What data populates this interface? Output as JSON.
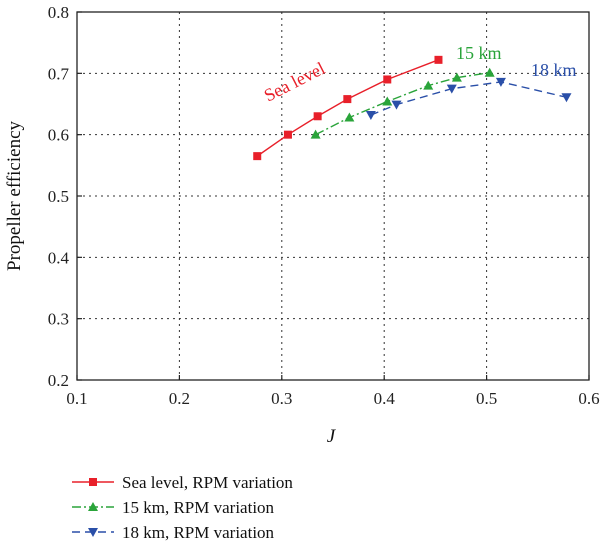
{
  "chart_data": {
    "type": "line",
    "xlabel": "J",
    "ylabel": "Propeller efficiency",
    "xlim": [
      0.1,
      0.6
    ],
    "ylim": [
      0.2,
      0.8
    ],
    "xticks": [
      0.1,
      0.2,
      0.3,
      0.4,
      0.5,
      0.6
    ],
    "yticks": [
      0.2,
      0.3,
      0.4,
      0.5,
      0.6,
      0.7,
      0.8
    ],
    "xtick_labels": [
      "0.1",
      "0.2",
      "0.3",
      "0.4",
      "0.5",
      "0.6"
    ],
    "ytick_labels": [
      "0.2",
      "0.3",
      "0.4",
      "0.5",
      "0.6",
      "0.7",
      "0.8"
    ],
    "grid": true,
    "legend_position": "below plot",
    "series": [
      {
        "name": "Sea level, RPM variation",
        "annotation": "Sea level",
        "color": "#e8202a",
        "marker": "square",
        "line_style": "solid",
        "x": [
          0.276,
          0.306,
          0.335,
          0.364,
          0.403,
          0.453
        ],
        "y": [
          0.565,
          0.6,
          0.63,
          0.658,
          0.69,
          0.722
        ]
      },
      {
        "name": "15 km, RPM variation",
        "annotation": "15 km",
        "color": "#2aa43a",
        "marker": "triangle-up",
        "line_style": "dashdot",
        "x": [
          0.333,
          0.366,
          0.403,
          0.443,
          0.471,
          0.503
        ],
        "y": [
          0.6,
          0.628,
          0.654,
          0.68,
          0.693,
          0.701
        ]
      },
      {
        "name": "18 km, RPM variation",
        "annotation": "18 km",
        "color": "#2a4fa8",
        "marker": "triangle-down",
        "line_style": "dashed",
        "x": [
          0.387,
          0.412,
          0.466,
          0.514,
          0.578
        ],
        "y": [
          0.632,
          0.649,
          0.675,
          0.686,
          0.661
        ]
      }
    ]
  }
}
